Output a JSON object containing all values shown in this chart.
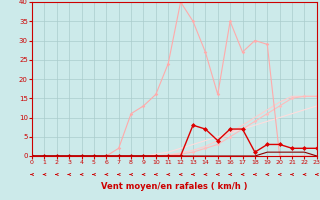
{
  "xlabel": "Vent moyen/en rafales ( km/h )",
  "xlim": [
    0,
    23
  ],
  "ylim": [
    0,
    40
  ],
  "yticks": [
    0,
    5,
    10,
    15,
    20,
    25,
    30,
    35,
    40
  ],
  "xticks": [
    0,
    1,
    2,
    3,
    4,
    5,
    6,
    7,
    8,
    9,
    10,
    11,
    12,
    13,
    14,
    15,
    16,
    17,
    18,
    19,
    20,
    21,
    22,
    23
  ],
  "bg_color": "#cceaea",
  "grid_color": "#aacccc",
  "line_peak_x": [
    0,
    1,
    2,
    3,
    4,
    5,
    6,
    7,
    8,
    9,
    10,
    11,
    12,
    13,
    14,
    15,
    16,
    17,
    18,
    19,
    20,
    21,
    22,
    23
  ],
  "line_peak_y": [
    0,
    0,
    0,
    0,
    0,
    0,
    0,
    2,
    11,
    13,
    16,
    24,
    40,
    35,
    27,
    16,
    35,
    27,
    30,
    29,
    0,
    0,
    0,
    0
  ],
  "line_peak_color": "#ffaaaa",
  "line_slope1_x": [
    0,
    1,
    2,
    3,
    4,
    5,
    6,
    7,
    8,
    9,
    10,
    11,
    12,
    13,
    14,
    15,
    16,
    17,
    18,
    19,
    20,
    21,
    22,
    23
  ],
  "line_slope1_y": [
    0,
    0,
    0,
    0,
    0,
    0,
    0,
    0,
    0,
    0,
    0,
    0.2,
    0.5,
    1,
    2,
    3,
    5,
    7,
    9,
    11,
    13,
    15,
    15.5,
    15.5
  ],
  "line_slope1_color": "#ffbbbb",
  "line_slope2_x": [
    0,
    1,
    2,
    3,
    4,
    5,
    6,
    7,
    8,
    9,
    10,
    11,
    12,
    13,
    14,
    15,
    16,
    17,
    18,
    19,
    20,
    21,
    22,
    23
  ],
  "line_slope2_y": [
    0,
    0,
    0,
    0,
    0,
    0,
    0,
    0,
    0,
    0,
    0,
    0.3,
    0.8,
    1.5,
    2.5,
    4,
    6,
    8,
    10,
    12,
    14,
    15.5,
    15.5,
    15.5
  ],
  "line_slope2_color": "#ffcccc",
  "line_slope3_x": [
    0,
    1,
    2,
    3,
    4,
    5,
    6,
    7,
    8,
    9,
    10,
    11,
    12,
    13,
    14,
    15,
    16,
    17,
    18,
    19,
    20,
    21,
    22,
    23
  ],
  "line_slope3_y": [
    0,
    0,
    0,
    0,
    0,
    0,
    0,
    0,
    0,
    0,
    0.5,
    1,
    2,
    3,
    4,
    5,
    6,
    7,
    8,
    9,
    10,
    11,
    12,
    13
  ],
  "line_slope3_color": "#ffdddd",
  "line_dark_x": [
    0,
    1,
    2,
    3,
    4,
    5,
    6,
    7,
    8,
    9,
    10,
    11,
    12,
    13,
    14,
    15,
    16,
    17,
    18,
    19,
    20,
    21,
    22,
    23
  ],
  "line_dark_y": [
    0,
    0,
    0,
    0,
    0,
    0,
    0,
    0,
    0,
    0,
    0,
    0,
    0,
    8,
    7,
    4,
    7,
    7,
    1,
    3,
    3,
    2,
    2,
    2
  ],
  "line_dark_color": "#dd0000",
  "line_dark2_x": [
    0,
    1,
    2,
    3,
    4,
    5,
    6,
    7,
    8,
    9,
    10,
    11,
    12,
    13,
    14,
    15,
    16,
    17,
    18,
    19,
    20,
    21,
    22,
    23
  ],
  "line_dark2_y": [
    0,
    0,
    0,
    0,
    0,
    0,
    0,
    0,
    0,
    0,
    0,
    0,
    0,
    0,
    0,
    0,
    0,
    0,
    0,
    1,
    1,
    1,
    1,
    0
  ],
  "line_dark2_color": "#880000",
  "arrow_color": "#cc0000",
  "tick_color": "#cc0000",
  "spine_color": "#cc0000"
}
